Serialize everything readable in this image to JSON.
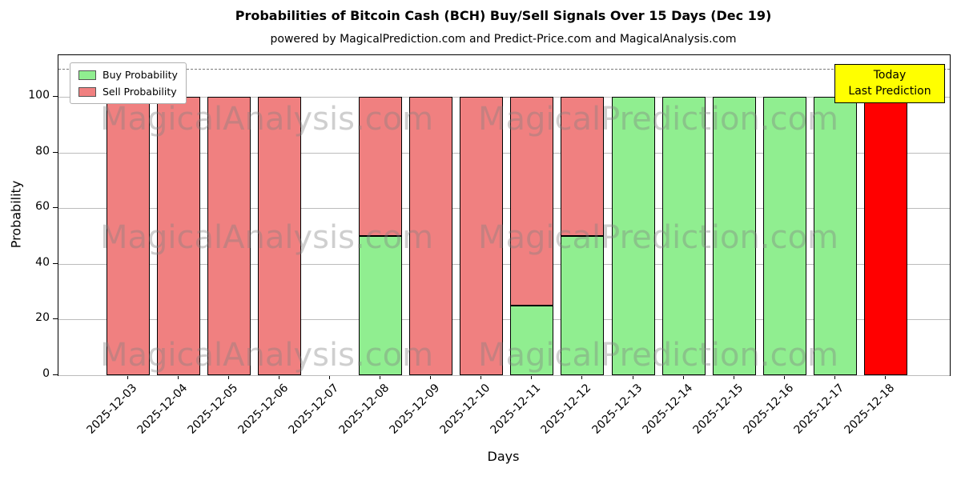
{
  "chart_data": {
    "type": "bar",
    "stacked": true,
    "title": "Probabilities of Bitcoin Cash (BCH) Buy/Sell Signals Over 15 Days (Dec 19)",
    "subtitle": "powered by MagicalPrediction.com and Predict-Price.com and MagicalAnalysis.com",
    "xlabel": "Days",
    "ylabel": "Probability",
    "ylim": [
      0,
      115
    ],
    "yticks": [
      0,
      20,
      40,
      60,
      80,
      100
    ],
    "dashed_line_y": 110,
    "grid": true,
    "legend_position": "upper left",
    "categories": [
      "2025-12-03",
      "2025-12-04",
      "2025-12-05",
      "2025-12-06",
      "2025-12-07",
      "2025-12-08",
      "2025-12-09",
      "2025-12-10",
      "2025-12-11",
      "2025-12-12",
      "2025-12-13",
      "2025-12-14",
      "2025-12-15",
      "2025-12-16",
      "2025-12-17",
      "2025-12-18"
    ],
    "series": [
      {
        "name": "Buy Probability",
        "color": "#90ee90",
        "values": [
          0,
          0,
          0,
          0,
          0,
          50,
          0,
          0,
          25,
          50,
          100,
          100,
          100,
          100,
          100,
          0
        ]
      },
      {
        "name": "Sell Probability",
        "color": "#f08080",
        "values": [
          100,
          100,
          100,
          100,
          0,
          50,
          100,
          100,
          75,
          50,
          0,
          0,
          0,
          0,
          0,
          0
        ]
      },
      {
        "name": "Last Prediction (Sell)",
        "color": "#ff0000",
        "values": [
          0,
          0,
          0,
          0,
          0,
          0,
          0,
          0,
          0,
          0,
          0,
          0,
          0,
          0,
          0,
          100
        ]
      }
    ],
    "legend": {
      "entries": [
        {
          "label": "Buy Probability",
          "color": "#90ee90"
        },
        {
          "label": "Sell Probability",
          "color": "#f08080"
        }
      ]
    },
    "annotation": {
      "lines": [
        "Today",
        "Last Prediction"
      ],
      "bg_color": "#ffff00",
      "border_color": "#000000"
    },
    "watermarks": {
      "left_text": "MagicalAnalysis.com",
      "right_text": "MagicalPrediction.com"
    }
  }
}
